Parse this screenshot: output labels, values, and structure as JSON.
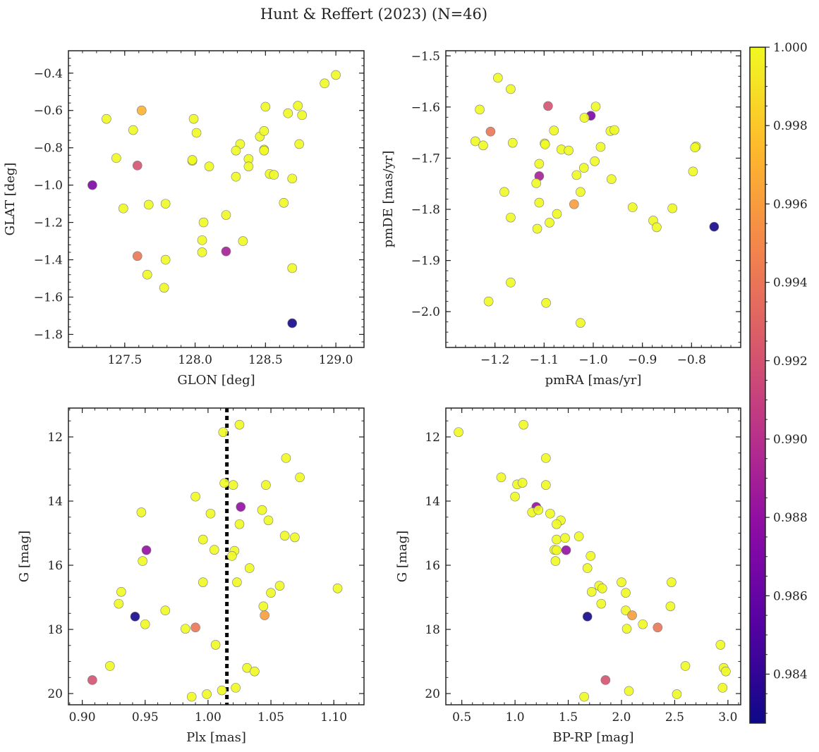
{
  "figure": {
    "title": "Hunt & Reffert (2023) (N=46)"
  },
  "colorbar": {
    "colormap": "plasma",
    "vmin": 0.98275,
    "vmax": 1.0,
    "ticks": [
      0.984,
      0.986,
      0.988,
      0.99,
      0.992,
      0.994,
      0.996,
      0.998,
      1.0
    ],
    "tick_labels": [
      "0.984",
      "0.986",
      "0.988",
      "0.990",
      "0.992",
      "0.994",
      "0.996",
      "0.998",
      "1.000"
    ]
  },
  "chart_data": [
    {
      "type": "scatter",
      "panel": "top-left",
      "xlabel": "GLON [deg]",
      "ylabel": "GLAT [deg]",
      "xlim": [
        127.1,
        129.2
      ],
      "ylim": [
        -1.87,
        -0.28
      ],
      "xticks": [
        127.5,
        128.0,
        128.5,
        129.0
      ],
      "xtick_labels": [
        "127.5",
        "128.0",
        "128.5",
        "129.0"
      ],
      "yticks": [
        -1.8,
        -1.6,
        -1.4,
        -1.2,
        -1.0,
        -0.8,
        -0.6,
        -0.4
      ],
      "ytick_labels": [
        "−1.8",
        "−1.6",
        "−1.4",
        "−1.2",
        "−1.0",
        "−0.8",
        "−0.6",
        "−0.4"
      ],
      "points": [
        {
          "x": 127.37,
          "y": -0.645,
          "c": 1.0
        },
        {
          "x": 127.56,
          "y": -0.705,
          "c": 1.0
        },
        {
          "x": 127.44,
          "y": -0.855,
          "c": 1.0
        },
        {
          "x": 127.62,
          "y": -0.6,
          "c": 0.997
        },
        {
          "x": 127.59,
          "y": -0.895,
          "c": 0.992
        },
        {
          "x": 127.27,
          "y": -1.0,
          "c": 0.987
        },
        {
          "x": 127.49,
          "y": -1.125,
          "c": 1.0
        },
        {
          "x": 127.67,
          "y": -1.105,
          "c": 1.0
        },
        {
          "x": 127.79,
          "y": -1.1,
          "c": 1.0
        },
        {
          "x": 127.99,
          "y": -0.645,
          "c": 1.0
        },
        {
          "x": 128.01,
          "y": -0.72,
          "c": 1.0
        },
        {
          "x": 127.98,
          "y": -0.87,
          "c": 1.0
        },
        {
          "x": 128.1,
          "y": -0.9,
          "c": 1.0
        },
        {
          "x": 128.06,
          "y": -1.2,
          "c": 1.0
        },
        {
          "x": 128.22,
          "y": -1.16,
          "c": 1.0
        },
        {
          "x": 127.59,
          "y": -1.38,
          "c": 0.994
        },
        {
          "x": 127.66,
          "y": -1.48,
          "c": 1.0
        },
        {
          "x": 127.79,
          "y": -1.4,
          "c": 1.0
        },
        {
          "x": 127.78,
          "y": -1.55,
          "c": 1.0
        },
        {
          "x": 128.05,
          "y": -1.295,
          "c": 1.0
        },
        {
          "x": 128.05,
          "y": -1.36,
          "c": 1.0
        },
        {
          "x": 128.22,
          "y": -1.355,
          "c": 0.989
        },
        {
          "x": 128.34,
          "y": -1.3,
          "c": 1.0
        },
        {
          "x": 128.29,
          "y": -0.955,
          "c": 1.0
        },
        {
          "x": 128.32,
          "y": -0.78,
          "c": 1.0
        },
        {
          "x": 128.29,
          "y": -0.815,
          "c": 1.0
        },
        {
          "x": 128.38,
          "y": -0.86,
          "c": 1.0
        },
        {
          "x": 128.38,
          "y": -0.9,
          "c": 1.0
        },
        {
          "x": 128.46,
          "y": -0.74,
          "c": 1.0
        },
        {
          "x": 128.49,
          "y": -0.71,
          "c": 1.0
        },
        {
          "x": 128.49,
          "y": -0.81,
          "c": 1.0
        },
        {
          "x": 128.49,
          "y": -0.815,
          "c": 1.0
        },
        {
          "x": 128.5,
          "y": -0.58,
          "c": 1.0
        },
        {
          "x": 128.53,
          "y": -0.94,
          "c": 1.0
        },
        {
          "x": 128.56,
          "y": -0.945,
          "c": 1.0
        },
        {
          "x": 128.66,
          "y": -0.615,
          "c": 1.0
        },
        {
          "x": 128.73,
          "y": -0.575,
          "c": 1.0
        },
        {
          "x": 128.76,
          "y": -0.625,
          "c": 1.0
        },
        {
          "x": 128.74,
          "y": -0.78,
          "c": 1.0
        },
        {
          "x": 128.69,
          "y": -0.965,
          "c": 1.0
        },
        {
          "x": 128.63,
          "y": -1.095,
          "c": 1.0
        },
        {
          "x": 128.69,
          "y": -1.445,
          "c": 1.0
        },
        {
          "x": 128.69,
          "y": -1.74,
          "c": 0.983
        },
        {
          "x": 128.92,
          "y": -0.455,
          "c": 1.0
        },
        {
          "x": 129.0,
          "y": -0.41,
          "c": 1.0
        },
        {
          "x": 127.98,
          "y": -0.865,
          "c": 1.0
        }
      ]
    },
    {
      "type": "scatter",
      "panel": "top-right",
      "xlabel": "pmRA [mas/yr]",
      "ylabel": "pmDE [mas/yr]",
      "xlim": [
        -1.3,
        -0.7
      ],
      "ylim": [
        -2.07,
        -1.49
      ],
      "xticks": [
        -1.2,
        -1.1,
        -1.0,
        -0.9,
        -0.8
      ],
      "xtick_labels": [
        "−1.2",
        "−1.1",
        "−1.0",
        "−0.9",
        "−0.8"
      ],
      "yticks": [
        -2.0,
        -1.9,
        -1.8,
        -1.7,
        -1.6,
        -1.5
      ],
      "ytick_labels": [
        "−2.0",
        "−1.9",
        "−1.8",
        "−1.7",
        "−1.6",
        "−1.5"
      ],
      "points": [
        {
          "x": -1.194,
          "y": -1.543,
          "c": 1.0
        },
        {
          "x": -1.168,
          "y": -1.565,
          "c": 1.0
        },
        {
          "x": -1.231,
          "y": -1.605,
          "c": 1.0
        },
        {
          "x": -1.24,
          "y": -1.667,
          "c": 1.0
        },
        {
          "x": -1.224,
          "y": -1.675,
          "c": 1.0
        },
        {
          "x": -1.209,
          "y": -1.648,
          "c": 0.994
        },
        {
          "x": -1.164,
          "y": -1.67,
          "c": 1.0
        },
        {
          "x": -1.092,
          "y": -1.598,
          "c": 0.992
        },
        {
          "x": -1.005,
          "y": -1.617,
          "c": 0.987
        },
        {
          "x": -0.995,
          "y": -1.599,
          "c": 1.0
        },
        {
          "x": -1.018,
          "y": -1.621,
          "c": 1.0
        },
        {
          "x": -1.08,
          "y": -1.646,
          "c": 1.0
        },
        {
          "x": -1.099,
          "y": -1.671,
          "c": 1.0
        },
        {
          "x": -1.098,
          "y": -1.673,
          "c": 1.0
        },
        {
          "x": -1.065,
          "y": -1.683,
          "c": 1.0
        },
        {
          "x": -1.05,
          "y": -1.685,
          "c": 1.0
        },
        {
          "x": -1.11,
          "y": -1.711,
          "c": 1.0
        },
        {
          "x": -1.11,
          "y": -1.735,
          "c": 0.989
        },
        {
          "x": -1.034,
          "y": -1.733,
          "c": 1.0
        },
        {
          "x": -1.019,
          "y": -1.719,
          "c": 1.0
        },
        {
          "x": -0.997,
          "y": -1.706,
          "c": 1.0
        },
        {
          "x": -0.985,
          "y": -1.678,
          "c": 1.0
        },
        {
          "x": -0.965,
          "y": -1.647,
          "c": 1.0
        },
        {
          "x": -0.957,
          "y": -1.645,
          "c": 1.0
        },
        {
          "x": -1.116,
          "y": -1.749,
          "c": 1.0
        },
        {
          "x": -1.181,
          "y": -1.766,
          "c": 1.0
        },
        {
          "x": -1.026,
          "y": -1.766,
          "c": 1.0
        },
        {
          "x": -1.11,
          "y": -1.787,
          "c": 1.0
        },
        {
          "x": -1.039,
          "y": -1.79,
          "c": 0.996
        },
        {
          "x": -1.074,
          "y": -1.809,
          "c": 1.0
        },
        {
          "x": -1.168,
          "y": -1.816,
          "c": 1.0
        },
        {
          "x": -1.089,
          "y": -1.826,
          "c": 1.0
        },
        {
          "x": -1.114,
          "y": -1.838,
          "c": 1.0
        },
        {
          "x": -0.963,
          "y": -1.741,
          "c": 1.0
        },
        {
          "x": -0.92,
          "y": -1.796,
          "c": 1.0
        },
        {
          "x": -0.878,
          "y": -1.822,
          "c": 1.0
        },
        {
          "x": -0.871,
          "y": -1.835,
          "c": 1.0
        },
        {
          "x": -0.839,
          "y": -1.798,
          "c": 1.0
        },
        {
          "x": -0.797,
          "y": -1.726,
          "c": 1.0
        },
        {
          "x": -0.791,
          "y": -1.677,
          "c": 1.0
        },
        {
          "x": -0.793,
          "y": -1.679,
          "c": 1.0
        },
        {
          "x": -0.754,
          "y": -1.834,
          "c": 0.983
        },
        {
          "x": -1.168,
          "y": -1.943,
          "c": 1.0
        },
        {
          "x": -1.213,
          "y": -1.98,
          "c": 1.0
        },
        {
          "x": -1.096,
          "y": -1.983,
          "c": 1.0
        },
        {
          "x": -1.026,
          "y": -2.022,
          "c": 1.0
        }
      ]
    },
    {
      "type": "scatter",
      "panel": "bottom-left",
      "xlabel": "Plx [mas]",
      "ylabel": "G [mag]",
      "xlim": [
        0.889,
        1.124
      ],
      "ylim": [
        20.35,
        11.1
      ],
      "y_inverted": true,
      "xticks": [
        0.9,
        0.95,
        1.0,
        1.05,
        1.1
      ],
      "xtick_labels": [
        "0.90",
        "0.95",
        "1.00",
        "1.05",
        "1.10"
      ],
      "yticks": [
        12,
        14,
        16,
        18,
        20
      ],
      "ytick_labels": [
        "12",
        "14",
        "16",
        "18",
        "20"
      ],
      "vline": {
        "x": 1.015,
        "style": "dotted",
        "color": "#000000"
      },
      "points": [
        {
          "x": 1.012,
          "y": 11.85,
          "c": 1.0
        },
        {
          "x": 1.025,
          "y": 11.62,
          "c": 1.0
        },
        {
          "x": 1.062,
          "y": 12.66,
          "c": 1.0
        },
        {
          "x": 1.073,
          "y": 13.26,
          "c": 1.0
        },
        {
          "x": 1.013,
          "y": 13.44,
          "c": 1.0
        },
        {
          "x": 1.02,
          "y": 13.5,
          "c": 1.0
        },
        {
          "x": 1.046,
          "y": 13.5,
          "c": 1.0
        },
        {
          "x": 0.99,
          "y": 13.86,
          "c": 1.0
        },
        {
          "x": 1.002,
          "y": 14.39,
          "c": 1.0
        },
        {
          "x": 1.026,
          "y": 14.18,
          "c": 0.988
        },
        {
          "x": 1.043,
          "y": 14.28,
          "c": 1.0
        },
        {
          "x": 1.048,
          "y": 14.6,
          "c": 1.0
        },
        {
          "x": 1.025,
          "y": 14.72,
          "c": 1.0
        },
        {
          "x": 0.947,
          "y": 14.35,
          "c": 1.0
        },
        {
          "x": 0.951,
          "y": 15.53,
          "c": 0.988
        },
        {
          "x": 0.996,
          "y": 15.2,
          "c": 1.0
        },
        {
          "x": 1.005,
          "y": 15.52,
          "c": 1.0
        },
        {
          "x": 1.021,
          "y": 15.55,
          "c": 1.0
        },
        {
          "x": 1.019,
          "y": 15.71,
          "c": 1.0
        },
        {
          "x": 1.061,
          "y": 15.08,
          "c": 1.0
        },
        {
          "x": 1.069,
          "y": 15.13,
          "c": 1.0
        },
        {
          "x": 0.948,
          "y": 15.87,
          "c": 1.0
        },
        {
          "x": 1.033,
          "y": 16.09,
          "c": 1.0
        },
        {
          "x": 0.996,
          "y": 16.53,
          "c": 1.0
        },
        {
          "x": 1.023,
          "y": 16.53,
          "c": 1.0
        },
        {
          "x": 1.057,
          "y": 16.64,
          "c": 1.0
        },
        {
          "x": 1.05,
          "y": 16.86,
          "c": 1.0
        },
        {
          "x": 1.103,
          "y": 16.72,
          "c": 1.0
        },
        {
          "x": 0.931,
          "y": 16.83,
          "c": 1.0
        },
        {
          "x": 0.929,
          "y": 17.2,
          "c": 1.0
        },
        {
          "x": 0.942,
          "y": 17.6,
          "c": 0.983
        },
        {
          "x": 0.966,
          "y": 17.41,
          "c": 1.0
        },
        {
          "x": 1.044,
          "y": 17.28,
          "c": 1.0
        },
        {
          "x": 1.045,
          "y": 17.56,
          "c": 0.996
        },
        {
          "x": 0.95,
          "y": 17.84,
          "c": 1.0
        },
        {
          "x": 0.982,
          "y": 17.98,
          "c": 1.0
        },
        {
          "x": 0.99,
          "y": 17.94,
          "c": 0.994
        },
        {
          "x": 1.006,
          "y": 18.48,
          "c": 1.0
        },
        {
          "x": 0.922,
          "y": 19.14,
          "c": 1.0
        },
        {
          "x": 1.031,
          "y": 19.2,
          "c": 1.0
        },
        {
          "x": 1.037,
          "y": 19.31,
          "c": 1.0
        },
        {
          "x": 0.908,
          "y": 19.58,
          "c": 0.992
        },
        {
          "x": 1.022,
          "y": 19.82,
          "c": 1.0
        },
        {
          "x": 1.011,
          "y": 19.9,
          "c": 1.0
        },
        {
          "x": 0.999,
          "y": 20.02,
          "c": 1.0
        },
        {
          "x": 0.987,
          "y": 20.1,
          "c": 1.0
        }
      ]
    },
    {
      "type": "scatter",
      "panel": "bottom-right",
      "xlabel": "BP-RP [mag]",
      "ylabel": "G [mag]",
      "xlim": [
        0.35,
        3.12
      ],
      "ylim": [
        20.35,
        11.1
      ],
      "y_inverted": true,
      "xticks": [
        0.5,
        1.0,
        1.5,
        2.0,
        2.5,
        3.0
      ],
      "xtick_labels": [
        "0.5",
        "1.0",
        "1.5",
        "2.0",
        "2.5",
        "3.0"
      ],
      "yticks": [
        12,
        14,
        16,
        18,
        20
      ],
      "ytick_labels": [
        "12",
        "14",
        "16",
        "18",
        "20"
      ],
      "points": [
        {
          "x": 0.47,
          "y": 11.85,
          "c": 1.0
        },
        {
          "x": 1.08,
          "y": 11.62,
          "c": 1.0
        },
        {
          "x": 1.29,
          "y": 12.66,
          "c": 1.0
        },
        {
          "x": 0.87,
          "y": 13.26,
          "c": 1.0
        },
        {
          "x": 1.02,
          "y": 13.48,
          "c": 1.0
        },
        {
          "x": 1.07,
          "y": 13.43,
          "c": 1.0
        },
        {
          "x": 1.29,
          "y": 13.5,
          "c": 1.0
        },
        {
          "x": 1.0,
          "y": 13.86,
          "c": 1.0
        },
        {
          "x": 1.2,
          "y": 14.18,
          "c": 0.988
        },
        {
          "x": 1.16,
          "y": 14.35,
          "c": 1.0
        },
        {
          "x": 1.22,
          "y": 14.28,
          "c": 1.0
        },
        {
          "x": 1.33,
          "y": 14.39,
          "c": 1.0
        },
        {
          "x": 1.43,
          "y": 14.6,
          "c": 1.0
        },
        {
          "x": 1.39,
          "y": 14.72,
          "c": 1.0
        },
        {
          "x": 1.39,
          "y": 15.2,
          "c": 1.0
        },
        {
          "x": 1.47,
          "y": 15.15,
          "c": 1.0
        },
        {
          "x": 1.6,
          "y": 15.1,
          "c": 1.0
        },
        {
          "x": 1.37,
          "y": 15.52,
          "c": 1.0
        },
        {
          "x": 1.39,
          "y": 15.53,
          "c": 1.0
        },
        {
          "x": 1.48,
          "y": 15.53,
          "c": 0.988
        },
        {
          "x": 1.71,
          "y": 15.71,
          "c": 1.0
        },
        {
          "x": 1.38,
          "y": 15.87,
          "c": 1.0
        },
        {
          "x": 1.68,
          "y": 16.09,
          "c": 1.0
        },
        {
          "x": 2.0,
          "y": 16.53,
          "c": 1.0
        },
        {
          "x": 2.47,
          "y": 16.53,
          "c": 1.0
        },
        {
          "x": 1.79,
          "y": 16.64,
          "c": 1.0
        },
        {
          "x": 1.82,
          "y": 16.72,
          "c": 1.0
        },
        {
          "x": 1.72,
          "y": 16.83,
          "c": 1.0
        },
        {
          "x": 2.04,
          "y": 16.86,
          "c": 1.0
        },
        {
          "x": 1.81,
          "y": 17.2,
          "c": 1.0
        },
        {
          "x": 2.46,
          "y": 17.28,
          "c": 1.0
        },
        {
          "x": 2.04,
          "y": 17.41,
          "c": 1.0
        },
        {
          "x": 2.1,
          "y": 17.56,
          "c": 0.996
        },
        {
          "x": 1.68,
          "y": 17.6,
          "c": 0.983
        },
        {
          "x": 2.2,
          "y": 17.84,
          "c": 1.0
        },
        {
          "x": 2.34,
          "y": 17.94,
          "c": 0.994
        },
        {
          "x": 2.05,
          "y": 17.98,
          "c": 1.0
        },
        {
          "x": 2.93,
          "y": 18.48,
          "c": 1.0
        },
        {
          "x": 2.6,
          "y": 19.14,
          "c": 1.0
        },
        {
          "x": 2.96,
          "y": 19.2,
          "c": 1.0
        },
        {
          "x": 2.98,
          "y": 19.31,
          "c": 1.0
        },
        {
          "x": 1.85,
          "y": 19.58,
          "c": 0.992
        },
        {
          "x": 2.95,
          "y": 19.82,
          "c": 1.0
        },
        {
          "x": 2.07,
          "y": 19.92,
          "c": 1.0
        },
        {
          "x": 2.52,
          "y": 20.02,
          "c": 1.0
        },
        {
          "x": 1.65,
          "y": 20.1,
          "c": 1.0
        }
      ]
    }
  ]
}
